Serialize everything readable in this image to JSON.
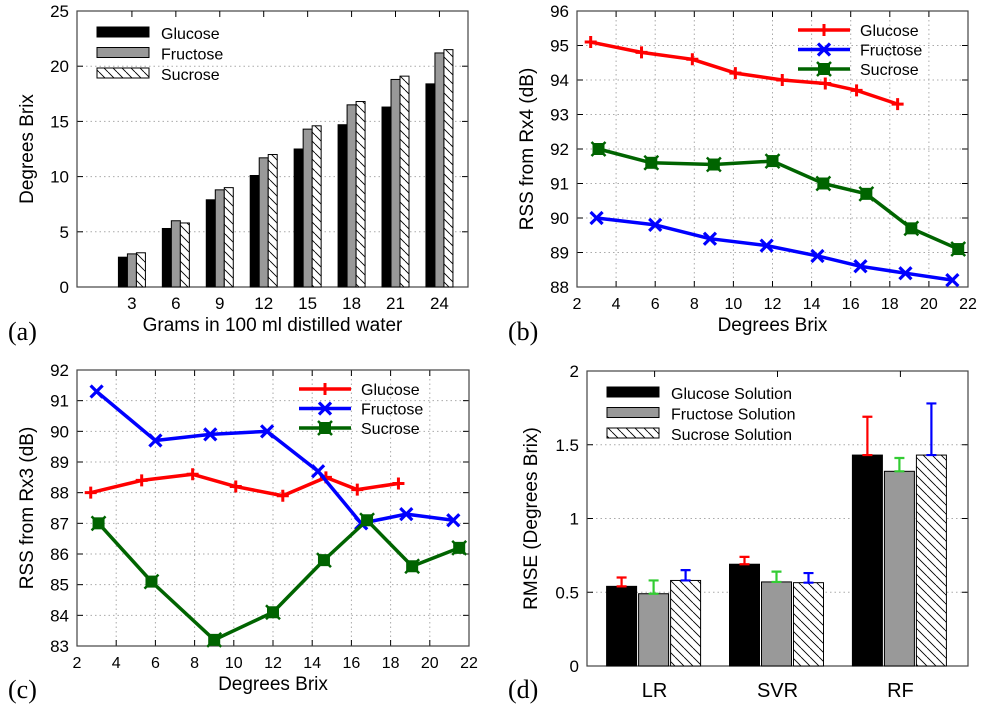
{
  "colors": {
    "glucose_line": "#ff0000",
    "fructose_line": "#0000ff",
    "sucrose_line": "#006400",
    "bar_glucose": "#000000",
    "bar_fructose": "#999999",
    "bar_sucrose": "#ffffff",
    "err_glucose": "#ff0000",
    "err_fructose": "#33cc33",
    "err_sucrose": "#0000ff"
  },
  "chart_data": [
    {
      "panel": "(a)",
      "type": "bar",
      "xlabel": "Grams in 100 ml distilled water",
      "ylabel": "Degrees Brix",
      "ylim": [
        0,
        25
      ],
      "yticks": [
        "0",
        "5",
        "10",
        "15",
        "20",
        "25"
      ],
      "grid": true,
      "legend": "top-left",
      "categories": [
        "3",
        "6",
        "9",
        "12",
        "15",
        "18",
        "21",
        "24"
      ],
      "series": [
        {
          "name": "Glucose",
          "fill": "solid-black",
          "values": [
            2.7,
            5.3,
            7.9,
            10.1,
            12.5,
            14.7,
            16.3,
            18.4
          ]
        },
        {
          "name": "Fructose",
          "fill": "gray",
          "values": [
            3.0,
            6.0,
            8.8,
            11.7,
            14.3,
            16.5,
            18.8,
            21.2
          ]
        },
        {
          "name": "Sucrose",
          "fill": "hatched",
          "values": [
            3.1,
            5.8,
            9.0,
            12.0,
            14.6,
            16.8,
            19.1,
            21.5
          ]
        }
      ]
    },
    {
      "panel": "(b)",
      "type": "line",
      "xlabel": "Degrees Brix",
      "ylabel": "RSS from Rx4 (dB)",
      "xlim": [
        2,
        22
      ],
      "ylim": [
        88,
        96
      ],
      "xticks": [
        "2",
        "4",
        "6",
        "8",
        "10",
        "12",
        "14",
        "16",
        "18",
        "20",
        "22"
      ],
      "yticks": [
        "88",
        "89",
        "90",
        "91",
        "92",
        "93",
        "94",
        "95",
        "96"
      ],
      "grid": true,
      "legend": "top-right",
      "series": [
        {
          "name": "Glucose",
          "marker": "plus",
          "x": [
            2.7,
            5.3,
            7.9,
            10.1,
            12.5,
            14.7,
            16.3,
            18.4
          ],
          "y": [
            95.1,
            94.8,
            94.6,
            94.2,
            94.0,
            93.9,
            93.7,
            93.3
          ]
        },
        {
          "name": "Fructose",
          "marker": "cross",
          "x": [
            3.0,
            6.0,
            8.8,
            11.7,
            14.3,
            16.5,
            18.8,
            21.2
          ],
          "y": [
            90.0,
            89.8,
            89.4,
            89.2,
            88.9,
            88.6,
            88.4,
            88.2
          ]
        },
        {
          "name": "Sucrose",
          "marker": "square",
          "x": [
            3.1,
            5.8,
            9.0,
            12.0,
            14.6,
            16.8,
            19.1,
            21.5
          ],
          "y": [
            92.0,
            91.6,
            91.55,
            91.65,
            91.0,
            90.7,
            89.7,
            89.1
          ]
        }
      ]
    },
    {
      "panel": "(c)",
      "type": "line",
      "xlabel": "Degrees Brix",
      "ylabel": "RSS from Rx3 (dB)",
      "xlim": [
        2,
        22
      ],
      "ylim": [
        83,
        92
      ],
      "xticks": [
        "2",
        "4",
        "6",
        "8",
        "10",
        "12",
        "14",
        "16",
        "18",
        "20",
        "22"
      ],
      "yticks": [
        "83",
        "84",
        "85",
        "86",
        "87",
        "88",
        "89",
        "90",
        "91",
        "92"
      ],
      "grid": true,
      "legend": "top-right",
      "series": [
        {
          "name": "Glucose",
          "marker": "plus",
          "x": [
            2.7,
            5.3,
            7.9,
            10.1,
            12.5,
            14.7,
            16.3,
            18.4
          ],
          "y": [
            88.0,
            88.4,
            88.6,
            88.2,
            87.9,
            88.5,
            88.1,
            88.3
          ]
        },
        {
          "name": "Fructose",
          "marker": "cross",
          "x": [
            3.0,
            6.0,
            8.8,
            11.7,
            14.3,
            16.5,
            18.8,
            21.2
          ],
          "y": [
            91.3,
            89.7,
            89.9,
            90.0,
            88.7,
            87.0,
            87.3,
            87.1
          ]
        },
        {
          "name": "Sucrose",
          "marker": "square",
          "x": [
            3.1,
            5.8,
            9.0,
            12.0,
            14.6,
            16.8,
            19.1,
            21.5
          ],
          "y": [
            87.0,
            85.1,
            83.2,
            84.1,
            85.8,
            87.1,
            85.6,
            86.2
          ]
        }
      ]
    },
    {
      "panel": "(d)",
      "type": "bar",
      "xlabel": "",
      "ylabel": "RMSE (Degrees Brix)",
      "ylim": [
        0,
        2
      ],
      "yticks": [
        "0",
        "0.5",
        "1",
        "1.5",
        "2"
      ],
      "grid": true,
      "legend": "top-left",
      "categories": [
        "LR",
        "SVR",
        "RF"
      ],
      "series": [
        {
          "name": "Glucose Solution",
          "fill": "solid-black",
          "values": [
            0.54,
            0.69,
            1.43
          ],
          "error_upper": [
            0.6,
            0.74,
            1.69
          ]
        },
        {
          "name": "Fructose Solution",
          "fill": "gray",
          "values": [
            0.49,
            0.57,
            1.32
          ],
          "error_upper": [
            0.58,
            0.64,
            1.41
          ]
        },
        {
          "name": "Sucrose Solution",
          "fill": "hatched",
          "values": [
            0.58,
            0.565,
            1.43
          ],
          "error_upper": [
            0.65,
            0.63,
            1.78
          ]
        }
      ]
    }
  ]
}
